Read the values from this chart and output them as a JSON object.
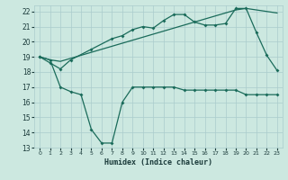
{
  "xlabel": "Humidex (Indice chaleur)",
  "bg_color": "#cce8e0",
  "grid_color": "#aacccc",
  "line_color": "#1a6b5a",
  "line1_x": [
    0,
    1,
    2,
    3,
    4,
    5,
    6,
    7,
    8,
    9,
    10,
    11,
    12,
    13,
    14,
    15,
    16,
    17,
    18,
    19,
    20,
    21,
    22,
    23
  ],
  "line1_y": [
    19.0,
    18.8,
    18.7,
    18.9,
    19.1,
    19.3,
    19.5,
    19.7,
    19.9,
    20.1,
    20.3,
    20.5,
    20.7,
    20.9,
    21.1,
    21.3,
    21.5,
    21.7,
    21.9,
    22.1,
    22.2,
    22.1,
    22.0,
    21.9
  ],
  "line2_x": [
    0,
    1,
    2,
    3,
    5,
    7,
    8,
    9,
    10,
    11,
    12,
    13,
    14,
    15,
    16,
    17,
    18,
    19,
    20,
    21,
    22,
    23
  ],
  "line2_y": [
    19.0,
    18.6,
    18.2,
    18.8,
    19.5,
    20.2,
    20.4,
    20.8,
    21.0,
    20.9,
    21.4,
    21.8,
    21.8,
    21.3,
    21.1,
    21.1,
    21.2,
    22.2,
    22.2,
    20.6,
    19.1,
    18.1
  ],
  "line3_x": [
    0,
    1,
    2,
    3,
    4,
    5,
    6,
    7,
    8,
    9,
    10,
    11,
    12,
    13,
    14,
    15,
    16,
    17,
    18,
    19,
    20,
    21,
    22,
    23
  ],
  "line3_y": [
    19.0,
    18.8,
    17.0,
    16.7,
    16.5,
    14.2,
    13.3,
    13.3,
    16.0,
    17.0,
    17.0,
    17.0,
    17.0,
    17.0,
    16.8,
    16.8,
    16.8,
    16.8,
    16.8,
    16.8,
    16.5,
    16.5,
    16.5,
    16.5
  ],
  "ylim": [
    13,
    22.4
  ],
  "xlim": [
    -0.5,
    23.5
  ],
  "yticks": [
    13,
    14,
    15,
    16,
    17,
    18,
    19,
    20,
    21,
    22
  ],
  "xticks": [
    0,
    1,
    2,
    3,
    4,
    5,
    6,
    7,
    8,
    9,
    10,
    11,
    12,
    13,
    14,
    15,
    16,
    17,
    18,
    19,
    20,
    21,
    22,
    23
  ]
}
